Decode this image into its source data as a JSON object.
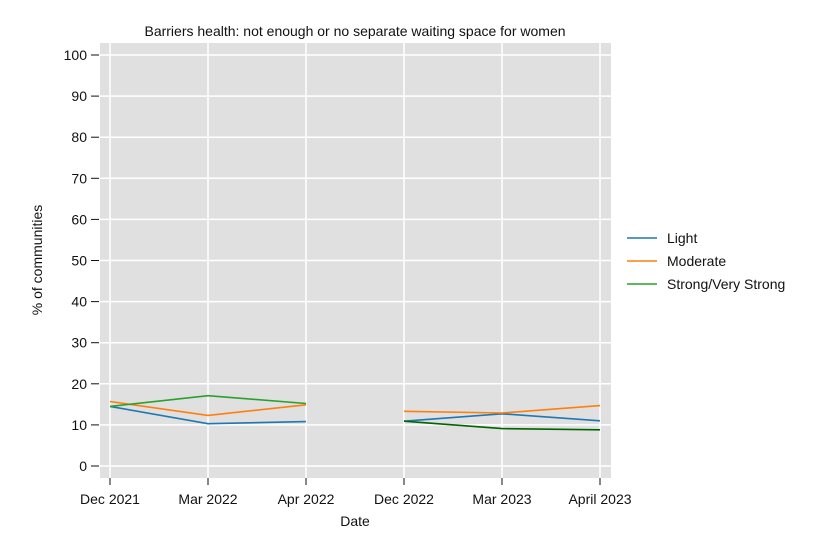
{
  "chart_data": {
    "type": "line",
    "title": "Barriers health: not enough or no separate waiting space for women",
    "xlabel": "Date",
    "ylabel": "% of communities",
    "ylim": [
      0,
      100
    ],
    "yticks": [
      0,
      10,
      20,
      30,
      40,
      50,
      60,
      70,
      80,
      90,
      100
    ],
    "categories": [
      "Dec 2021",
      "Mar 2022",
      "Apr 2022",
      "Dec 2022",
      "Mar 2023",
      "April 2023"
    ],
    "grid": true,
    "legend_position": "right",
    "series": [
      {
        "name": "Light",
        "color": "#1f77b4",
        "values": [
          14.5,
          10.3,
          10.8,
          10.9,
          12.7,
          11.0
        ]
      },
      {
        "name": "Moderate",
        "color": "#ff7f0e",
        "values": [
          15.7,
          12.3,
          14.9,
          13.3,
          12.9,
          14.7
        ]
      },
      {
        "name": "Strong/Very Strong",
        "color": "#2ca02c",
        "values": [
          14.5,
          17.1,
          15.2,
          10.9,
          9.1,
          8.8
        ]
      }
    ],
    "segments_note_color": "#006400"
  }
}
